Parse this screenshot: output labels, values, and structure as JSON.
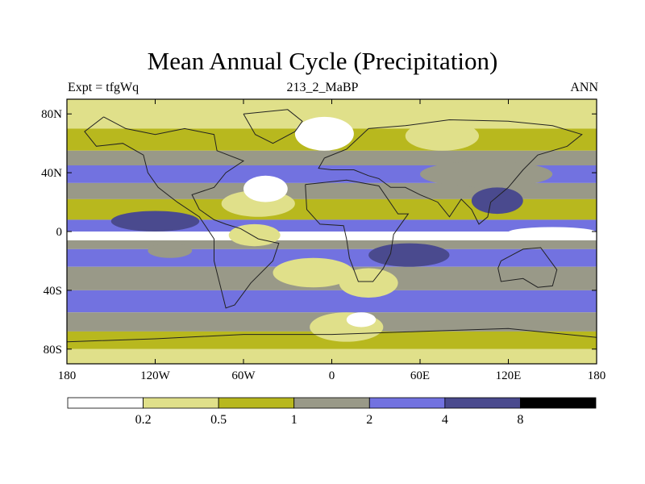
{
  "chart_data": {
    "type": "heatmap",
    "title": "Mean Annual Cycle (Precipitation)",
    "left_label": "Expt = tfgWq",
    "center_label": "213_2_MaBP",
    "right_label": "ANN",
    "xlim": [
      -180,
      180
    ],
    "ylim": [
      -90,
      90
    ],
    "x_ticks": [
      -180,
      -120,
      -60,
      0,
      60,
      120,
      180
    ],
    "x_tick_labels": [
      "180",
      "120W",
      "60W",
      "0",
      "60E",
      "120E",
      "180"
    ],
    "y_ticks": [
      80,
      40,
      0,
      -40,
      -80
    ],
    "y_tick_labels": [
      "80N",
      "40N",
      "0",
      "40S",
      "80S"
    ],
    "contour_levels": [
      0.2,
      0.5,
      1,
      2,
      4,
      8
    ],
    "colorbar_labels": [
      "0.2",
      "0.5",
      "1",
      "2",
      "4",
      "8"
    ],
    "colors": [
      "#ffffff",
      "#e0e08a",
      "#b8b81e",
      "#999988",
      "#7272e0",
      "#4a4a8e",
      "#000000"
    ],
    "bands": [
      {
        "lat": [
          70,
          90
        ],
        "level": 1
      },
      {
        "lat": [
          55,
          70
        ],
        "level": 2
      },
      {
        "lat": [
          45,
          55
        ],
        "level": 3
      },
      {
        "lat": [
          33,
          45
        ],
        "level": 4
      },
      {
        "lat": [
          22,
          33
        ],
        "level": 3
      },
      {
        "lat": [
          8,
          22
        ],
        "level": 2
      },
      {
        "lat": [
          0,
          8
        ],
        "level": 4
      },
      {
        "lat": [
          -6,
          0
        ],
        "level": 0
      },
      {
        "lat": [
          -12,
          -6
        ],
        "level": 3
      },
      {
        "lat": [
          -24,
          -12
        ],
        "level": 4
      },
      {
        "lat": [
          -40,
          -24
        ],
        "level": 3
      },
      {
        "lat": [
          -55,
          -40
        ],
        "level": 4
      },
      {
        "lat": [
          -68,
          -55
        ],
        "level": 3
      },
      {
        "lat": [
          -80,
          -68
        ],
        "level": 2
      },
      {
        "lat": [
          -90,
          -80
        ],
        "level": 1
      }
    ],
    "patches": [
      {
        "lon": [
          -150,
          -90
        ],
        "lat": [
          0,
          14
        ],
        "level": 5
      },
      {
        "lon": [
          -125,
          -95
        ],
        "lat": [
          -18,
          -8
        ],
        "level": 3
      },
      {
        "lon": [
          -75,
          -25
        ],
        "lat": [
          10,
          28
        ],
        "level": 1
      },
      {
        "lon": [
          -60,
          -30
        ],
        "lat": [
          20,
          38
        ],
        "level": 0
      },
      {
        "lon": [
          -25,
          15
        ],
        "lat": [
          55,
          78
        ],
        "level": 0
      },
      {
        "lon": [
          50,
          100
        ],
        "lat": [
          55,
          75
        ],
        "level": 1
      },
      {
        "lon": [
          60,
          150
        ],
        "lat": [
          30,
          48
        ],
        "level": 3
      },
      {
        "lon": [
          95,
          130
        ],
        "lat": [
          12,
          30
        ],
        "level": 5
      },
      {
        "lon": [
          25,
          80
        ],
        "lat": [
          -24,
          -8
        ],
        "level": 5
      },
      {
        "lon": [
          -40,
          15
        ],
        "lat": [
          -38,
          -18
        ],
        "level": 1
      },
      {
        "lon": [
          5,
          45
        ],
        "lat": [
          -45,
          -25
        ],
        "level": 1
      },
      {
        "lon": [
          -15,
          35
        ],
        "lat": [
          -75,
          -55
        ],
        "level": 1
      },
      {
        "lon": [
          10,
          30
        ],
        "lat": [
          -65,
          -55
        ],
        "level": 0
      },
      {
        "lon": [
          120,
          180
        ],
        "lat": [
          -4,
          3
        ],
        "level": 0
      },
      {
        "lon": [
          -70,
          -35
        ],
        "lat": [
          -10,
          5
        ],
        "level": 1
      }
    ],
    "coastlines": [
      [
        [
          -155,
          78
        ],
        [
          -140,
          70
        ],
        [
          -120,
          66
        ],
        [
          -100,
          70
        ],
        [
          -80,
          66
        ],
        [
          -78,
          55
        ],
        [
          -60,
          48
        ],
        [
          -72,
          40
        ],
        [
          -80,
          30
        ],
        [
          -95,
          25
        ],
        [
          -90,
          15
        ],
        [
          -80,
          8
        ],
        [
          -72,
          5
        ],
        [
          -62,
          2
        ],
        [
          -50,
          -5
        ],
        [
          -36,
          -8
        ],
        [
          -40,
          -20
        ],
        [
          -55,
          -35
        ],
        [
          -66,
          -50
        ],
        [
          -72,
          -52
        ],
        [
          -75,
          -40
        ],
        [
          -80,
          -20
        ],
        [
          -80,
          -5
        ],
        [
          -90,
          10
        ],
        [
          -105,
          20
        ],
        [
          -118,
          30
        ],
        [
          -125,
          40
        ],
        [
          -128,
          52
        ],
        [
          -142,
          60
        ],
        [
          -160,
          58
        ],
        [
          -168,
          68
        ],
        [
          -155,
          78
        ]
      ],
      [
        [
          -5,
          50
        ],
        [
          10,
          56
        ],
        [
          25,
          70
        ],
        [
          50,
          72
        ],
        [
          80,
          76
        ],
        [
          120,
          75
        ],
        [
          150,
          72
        ],
        [
          170,
          66
        ],
        [
          160,
          58
        ],
        [
          140,
          52
        ],
        [
          130,
          42
        ],
        [
          120,
          30
        ],
        [
          108,
          20
        ],
        [
          106,
          10
        ],
        [
          100,
          5
        ],
        [
          95,
          15
        ],
        [
          88,
          22
        ],
        [
          80,
          10
        ],
        [
          72,
          20
        ],
        [
          60,
          25
        ],
        [
          50,
          30
        ],
        [
          40,
          30
        ],
        [
          32,
          36
        ],
        [
          25,
          38
        ],
        [
          15,
          42
        ],
        [
          0,
          42
        ],
        [
          -9,
          43
        ],
        [
          -5,
          50
        ]
      ],
      [
        [
          -18,
          32
        ],
        [
          10,
          35
        ],
        [
          32,
          31
        ],
        [
          45,
          12
        ],
        [
          52,
          12
        ],
        [
          42,
          -2
        ],
        [
          40,
          -15
        ],
        [
          35,
          -25
        ],
        [
          28,
          -34
        ],
        [
          18,
          -34
        ],
        [
          12,
          -18
        ],
        [
          10,
          -5
        ],
        [
          8,
          4
        ],
        [
          -8,
          5
        ],
        [
          -17,
          15
        ],
        [
          -18,
          32
        ]
      ],
      [
        [
          115,
          -20
        ],
        [
          130,
          -12
        ],
        [
          142,
          -11
        ],
        [
          153,
          -26
        ],
        [
          150,
          -37
        ],
        [
          140,
          -38
        ],
        [
          130,
          -32
        ],
        [
          115,
          -34
        ],
        [
          113,
          -25
        ],
        [
          115,
          -20
        ]
      ],
      [
        [
          -60,
          80
        ],
        [
          -30,
          83
        ],
        [
          -20,
          75
        ],
        [
          -25,
          68
        ],
        [
          -40,
          60
        ],
        [
          -52,
          66
        ],
        [
          -60,
          80
        ]
      ],
      [
        [
          -180,
          -75
        ],
        [
          -120,
          -73
        ],
        [
          -60,
          -70
        ],
        [
          0,
          -70
        ],
        [
          60,
          -68
        ],
        [
          120,
          -66
        ],
        [
          180,
          -72
        ]
      ]
    ]
  }
}
